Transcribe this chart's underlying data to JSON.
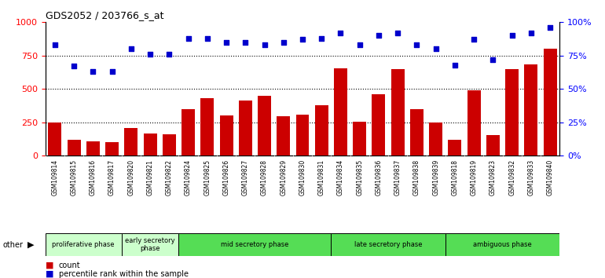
{
  "title": "GDS2052 / 203766_s_at",
  "samples": [
    "GSM109814",
    "GSM109815",
    "GSM109816",
    "GSM109817",
    "GSM109820",
    "GSM109821",
    "GSM109822",
    "GSM109824",
    "GSM109825",
    "GSM109826",
    "GSM109827",
    "GSM109828",
    "GSM109829",
    "GSM109830",
    "GSM109831",
    "GSM109834",
    "GSM109835",
    "GSM109836",
    "GSM109837",
    "GSM109838",
    "GSM109839",
    "GSM109818",
    "GSM109819",
    "GSM109823",
    "GSM109832",
    "GSM109833",
    "GSM109840"
  ],
  "counts": [
    250,
    120,
    105,
    100,
    210,
    165,
    160,
    350,
    430,
    300,
    415,
    450,
    295,
    310,
    380,
    655,
    255,
    460,
    650,
    350,
    250,
    120,
    490,
    155,
    650,
    685,
    800
  ],
  "percentiles": [
    83,
    67,
    63,
    63,
    80,
    76,
    76,
    88,
    88,
    85,
    85,
    83,
    85,
    87,
    88,
    92,
    83,
    90,
    92,
    83,
    80,
    68,
    87,
    72,
    90,
    92,
    96
  ],
  "phases": [
    {
      "name": "proliferative phase",
      "start": 0,
      "end": 4,
      "color": "#ccffcc"
    },
    {
      "name": "early secretory\nphase",
      "start": 4,
      "end": 7,
      "color": "#ccffcc"
    },
    {
      "name": "mid secretory phase",
      "start": 7,
      "end": 15,
      "color": "#55dd55"
    },
    {
      "name": "late secretory phase",
      "start": 15,
      "end": 21,
      "color": "#55dd55"
    },
    {
      "name": "ambiguous phase",
      "start": 21,
      "end": 27,
      "color": "#55dd55"
    }
  ],
  "bar_color": "#cc0000",
  "dot_color": "#0000cc",
  "ylim_left": [
    0,
    1000
  ],
  "ylim_right": [
    0,
    100
  ],
  "yticks_left": [
    0,
    250,
    500,
    750,
    1000
  ],
  "yticks_right": [
    0,
    25,
    50,
    75,
    100
  ],
  "background_color": "#ffffff",
  "tick_bg_color": "#d0d0d0"
}
